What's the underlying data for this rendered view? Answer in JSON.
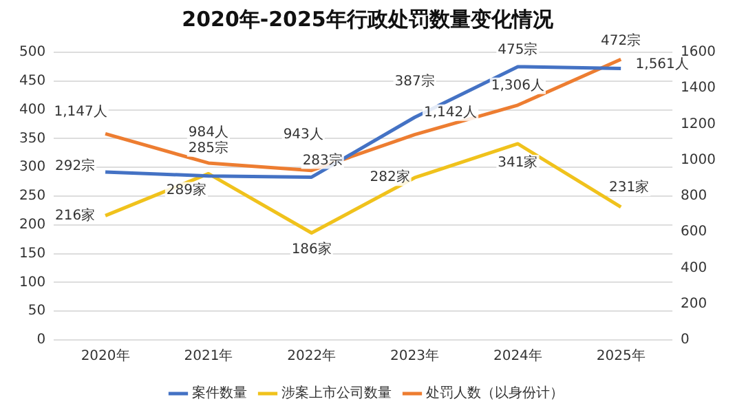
{
  "chart_data": {
    "type": "line",
    "title": "2020年-2025年行政处罚数量变化情况",
    "categories": [
      "2020年",
      "2021年",
      "2022年",
      "2023年",
      "2024年",
      "2025年"
    ],
    "series": [
      {
        "name": "案件数量",
        "color": "#4472c4",
        "values": [
          292,
          285,
          283,
          387,
          475,
          472
        ],
        "value_labels": [
          "292宗",
          "285宗",
          "283宗",
          "387宗",
          "475宗",
          "472宗"
        ]
      },
      {
        "name": "涉案上市公司数量",
        "color": "#f0c21c",
        "values": [
          216,
          289,
          186,
          282,
          341,
          231
        ],
        "value_labels": [
          "216家",
          "289家",
          "186家",
          "282家",
          "341家",
          "231家"
        ]
      },
      {
        "name": "处罚人数（以身份计）",
        "color": "#ed7d31",
        "axis": "y2",
        "values": [
          1147,
          984,
          943,
          1142,
          1306,
          1561
        ],
        "value_labels": [
          "1,147人",
          "984人",
          "943人",
          "1,142人",
          "1,306人",
          "1,561人"
        ]
      }
    ],
    "ylim": [
      0,
      500
    ],
    "yticks": [
      0,
      50,
      100,
      150,
      200,
      250,
      300,
      350,
      400,
      450,
      500
    ],
    "y2lim": [
      0,
      1600
    ],
    "y2ticks": [
      0,
      200,
      400,
      600,
      800,
      1000,
      1200,
      1400,
      1600
    ],
    "grid": "y",
    "legend": "bottom",
    "marker": "none",
    "line_style": "solid"
  }
}
